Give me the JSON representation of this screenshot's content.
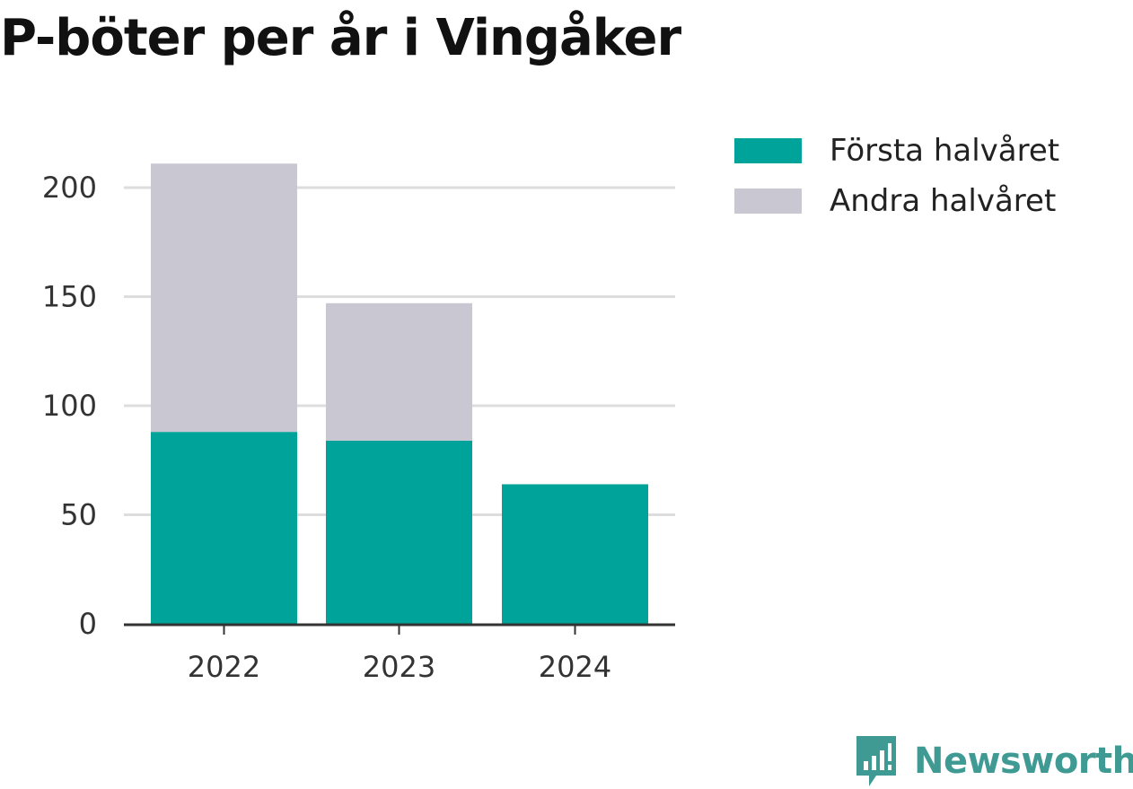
{
  "title": "P-böter per år i Vingåker",
  "chart_data": {
    "type": "bar",
    "stacked": true,
    "categories": [
      "2022",
      "2023",
      "2024"
    ],
    "series": [
      {
        "name": "Första halvåret",
        "values": [
          88,
          84,
          64
        ],
        "color": "#00a39a"
      },
      {
        "name": "Andra halvåret",
        "values": [
          123,
          63,
          0
        ],
        "color": "#c8c7d2"
      }
    ],
    "yticks": [
      "0",
      "50",
      "100",
      "150",
      "200"
    ],
    "ylim": [
      0,
      210
    ],
    "grid": true,
    "legend_position": "top-right"
  },
  "logo": {
    "text": "Newsworthy",
    "icon": "newsworthy-chart-bubble-icon",
    "color": "#3f9a93"
  }
}
